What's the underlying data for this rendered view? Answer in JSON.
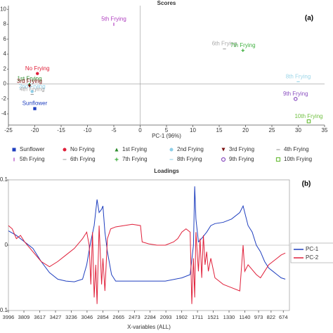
{
  "chart_data": [
    {
      "type": "scatter",
      "title": "Scores",
      "panel_label": "(a)",
      "x_label": "PC-1 (96%)",
      "xlim": [
        -25,
        35
      ],
      "xticks": [
        -25,
        -20,
        -15,
        -10,
        -5,
        0,
        5,
        10,
        15,
        20,
        25,
        30,
        35
      ],
      "ylim": [
        -5.5,
        10.5
      ],
      "yticks": [
        -4,
        -2,
        0,
        2,
        4,
        6,
        8,
        10
      ],
      "series": [
        {
          "name": "Sunflower",
          "color": "#1f3fbf",
          "marker": "square",
          "x": [
            -20
          ],
          "values": [
            -3.3
          ]
        },
        {
          "name": "No Frying",
          "color": "#e0203a",
          "marker": "circle",
          "x": [
            -19.5
          ],
          "values": [
            1.4
          ]
        },
        {
          "name": "1st Frying",
          "color": "#2a8a2a",
          "marker": "triangle",
          "x": [
            -21
          ],
          "values": [
            0
          ]
        },
        {
          "name": "2nd Frying",
          "color": "#8ecfe8",
          "marker": "circle",
          "x": [
            -20.5
          ],
          "values": [
            -1
          ]
        },
        {
          "name": "3rd Frying",
          "color": "#7a1010",
          "marker": "triangle-down",
          "x": [
            -21
          ],
          "values": [
            -0.3
          ]
        },
        {
          "name": "4th Frying",
          "color": "#a0a0a0",
          "marker": "dash",
          "x": [
            -20.5
          ],
          "values": [
            -1.4
          ]
        },
        {
          "name": "5th Frying",
          "color": "#b040c0",
          "marker": "vbar",
          "x": [
            -5
          ],
          "values": [
            8
          ]
        },
        {
          "name": "6th Frying",
          "color": "#aaaaaa",
          "marker": "dash",
          "x": [
            16
          ],
          "values": [
            4.7
          ]
        },
        {
          "name": "7th Frying",
          "color": "#40b040",
          "marker": "plus",
          "x": [
            19.5
          ],
          "values": [
            4.5
          ]
        },
        {
          "name": "8th Frying",
          "color": "#9dd6e8",
          "marker": "dash",
          "x": [
            30
          ],
          "values": [
            0.3
          ]
        },
        {
          "name": "9th Frying",
          "color": "#8a4fc0",
          "marker": "circle-open",
          "x": [
            29.5
          ],
          "values": [
            -2
          ]
        },
        {
          "name": "10th Frying",
          "color": "#70c040",
          "marker": "square-open",
          "x": [
            32
          ],
          "values": [
            -5
          ]
        }
      ]
    },
    {
      "type": "line",
      "title": "Loadings",
      "panel_label": "(b)",
      "x_label": "X-variables (ALL)",
      "xlim": [
        3996,
        600
      ],
      "xticks": [
        3996,
        3809,
        3617,
        3427,
        3236,
        3046,
        2854,
        2665,
        2473,
        2284,
        2093,
        1902,
        1711,
        1521,
        1330,
        1140,
        973,
        822,
        674
      ],
      "ylim": [
        -0.1,
        0.1
      ],
      "yticks": [
        0.1,
        0,
        {
          "value": -0.1,
          "label": "0.1"
        }
      ],
      "series": [
        {
          "name": "PC-1",
          "color": "#1f3fbf",
          "x": [
            3996,
            3900,
            3800,
            3700,
            3600,
            3500,
            3400,
            3300,
            3200,
            3100,
            3050,
            3010,
            2960,
            2925,
            2900,
            2870,
            2854,
            2830,
            2800,
            2750,
            2700,
            2500,
            2300,
            2100,
            1900,
            1800,
            1760,
            1745,
            1730,
            1700,
            1650,
            1600,
            1550,
            1500,
            1400,
            1300,
            1200,
            1160,
            1140,
            1100,
            1050,
            1000,
            950,
            900,
            850,
            800,
            750,
            700,
            650
          ],
          "values": [
            0.022,
            0.015,
            0.005,
            -0.005,
            -0.025,
            -0.042,
            -0.052,
            -0.055,
            -0.056,
            -0.052,
            -0.03,
            0.0,
            0.03,
            0.07,
            0.05,
            0.055,
            0.06,
            0.02,
            -0.01,
            -0.045,
            -0.055,
            -0.055,
            -0.055,
            -0.055,
            -0.05,
            -0.045,
            0.0,
            0.09,
            0.04,
            0.005,
            0.012,
            0.02,
            0.03,
            0.033,
            0.035,
            0.04,
            0.05,
            0.06,
            0.05,
            0.03,
            0.02,
            0.0,
            -0.01,
            -0.025,
            -0.035,
            -0.04,
            -0.045,
            -0.05,
            -0.052
          ]
        },
        {
          "name": "PC-2",
          "color": "#e0203a",
          "x": [
            3996,
            3950,
            3900,
            3850,
            3800,
            3700,
            3600,
            3500,
            3400,
            3300,
            3200,
            3100,
            3050,
            3020,
            3000,
            2980,
            2960,
            2940,
            2925,
            2900,
            2870,
            2854,
            2830,
            2800,
            2760,
            2700,
            2600,
            2500,
            2400,
            2380,
            2300,
            2200,
            2100,
            2000,
            1950,
            1900,
            1850,
            1800,
            1780,
            1760,
            1745,
            1730,
            1700,
            1680,
            1660,
            1640,
            1620,
            1600,
            1580,
            1550,
            1500,
            1450,
            1400,
            1300,
            1200,
            1160,
            1140,
            1100,
            1000,
            950,
            900,
            850,
            800,
            750,
            700,
            650
          ],
          "values": [
            0.03,
            0.025,
            0.01,
            0.015,
            0.005,
            -0.01,
            -0.025,
            -0.033,
            -0.025,
            -0.015,
            -0.005,
            0.01,
            0.02,
            0.0,
            -0.06,
            0.02,
            -0.08,
            -0.03,
            -0.09,
            0.03,
            -0.06,
            -0.02,
            -0.07,
            0.01,
            0.025,
            0.028,
            0.03,
            0.032,
            0.03,
            0.005,
            0.002,
            0.0,
            0.0,
            0.005,
            0.01,
            0.02,
            0.025,
            0.02,
            -0.09,
            -0.02,
            -0.08,
            0.02,
            -0.04,
            0.01,
            -0.05,
            0.015,
            -0.03,
            -0.01,
            -0.04,
            -0.02,
            -0.05,
            -0.055,
            -0.06,
            -0.065,
            -0.07,
            0.0,
            -0.04,
            -0.03,
            -0.045,
            -0.05,
            -0.04,
            -0.03,
            -0.025,
            -0.02,
            -0.015,
            -0.012
          ]
        }
      ]
    }
  ]
}
